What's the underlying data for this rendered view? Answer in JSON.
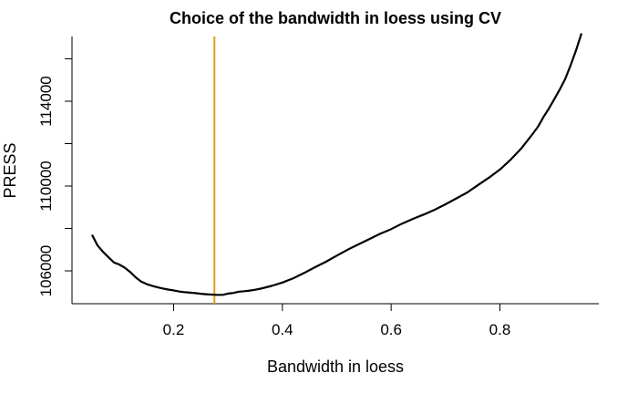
{
  "chart_data": {
    "type": "line",
    "title": "Choice of the bandwidth in loess using CV",
    "xlabel": "Bandwidth in loess",
    "ylabel": "PRESS",
    "xlim": [
      0.05,
      0.95
    ],
    "ylim": [
      104700,
      117700
    ],
    "x_ticks": [
      0.2,
      0.4,
      0.6,
      0.8
    ],
    "x_tick_labels": [
      "0.2",
      "0.4",
      "0.6",
      "0.8"
    ],
    "y_ticks": [
      106000,
      110000,
      114000
    ],
    "y_tick_labels": [
      "106000",
      "110000",
      "114000"
    ],
    "y_minor_ticks": [
      108000,
      112000,
      116000
    ],
    "grid": false,
    "series": [
      {
        "color": "#000000",
        "x": [
          0.05,
          0.06,
          0.07,
          0.08,
          0.09,
          0.1,
          0.11,
          0.12,
          0.13,
          0.14,
          0.15,
          0.16,
          0.17,
          0.18,
          0.19,
          0.2,
          0.21,
          0.22,
          0.23,
          0.24,
          0.25,
          0.26,
          0.27,
          0.28,
          0.29,
          0.3,
          0.31,
          0.32,
          0.33,
          0.34,
          0.35,
          0.36,
          0.38,
          0.4,
          0.42,
          0.44,
          0.46,
          0.48,
          0.5,
          0.52,
          0.54,
          0.56,
          0.58,
          0.6,
          0.62,
          0.64,
          0.66,
          0.68,
          0.7,
          0.72,
          0.74,
          0.76,
          0.78,
          0.8,
          0.82,
          0.84,
          0.86,
          0.87,
          0.88,
          0.89,
          0.9,
          0.91,
          0.92,
          0.93,
          0.94,
          0.95
        ],
        "y": [
          107700,
          107200,
          106900,
          106650,
          106400,
          106300,
          106150,
          105950,
          105700,
          105500,
          105380,
          105300,
          105230,
          105170,
          105120,
          105080,
          105030,
          105000,
          104970,
          104950,
          104920,
          104900,
          104880,
          104870,
          104870,
          104930,
          104960,
          105020,
          105040,
          105070,
          105110,
          105160,
          105290,
          105450,
          105650,
          105900,
          106170,
          106430,
          106720,
          107000,
          107250,
          107500,
          107750,
          107970,
          108230,
          108450,
          108660,
          108880,
          109140,
          109420,
          109700,
          110050,
          110400,
          110780,
          111250,
          111800,
          112450,
          112800,
          113250,
          113650,
          114100,
          114550,
          115050,
          115700,
          116400,
          117200
        ]
      }
    ],
    "vline": {
      "x": 0.275,
      "color": "#e69b1e"
    }
  }
}
